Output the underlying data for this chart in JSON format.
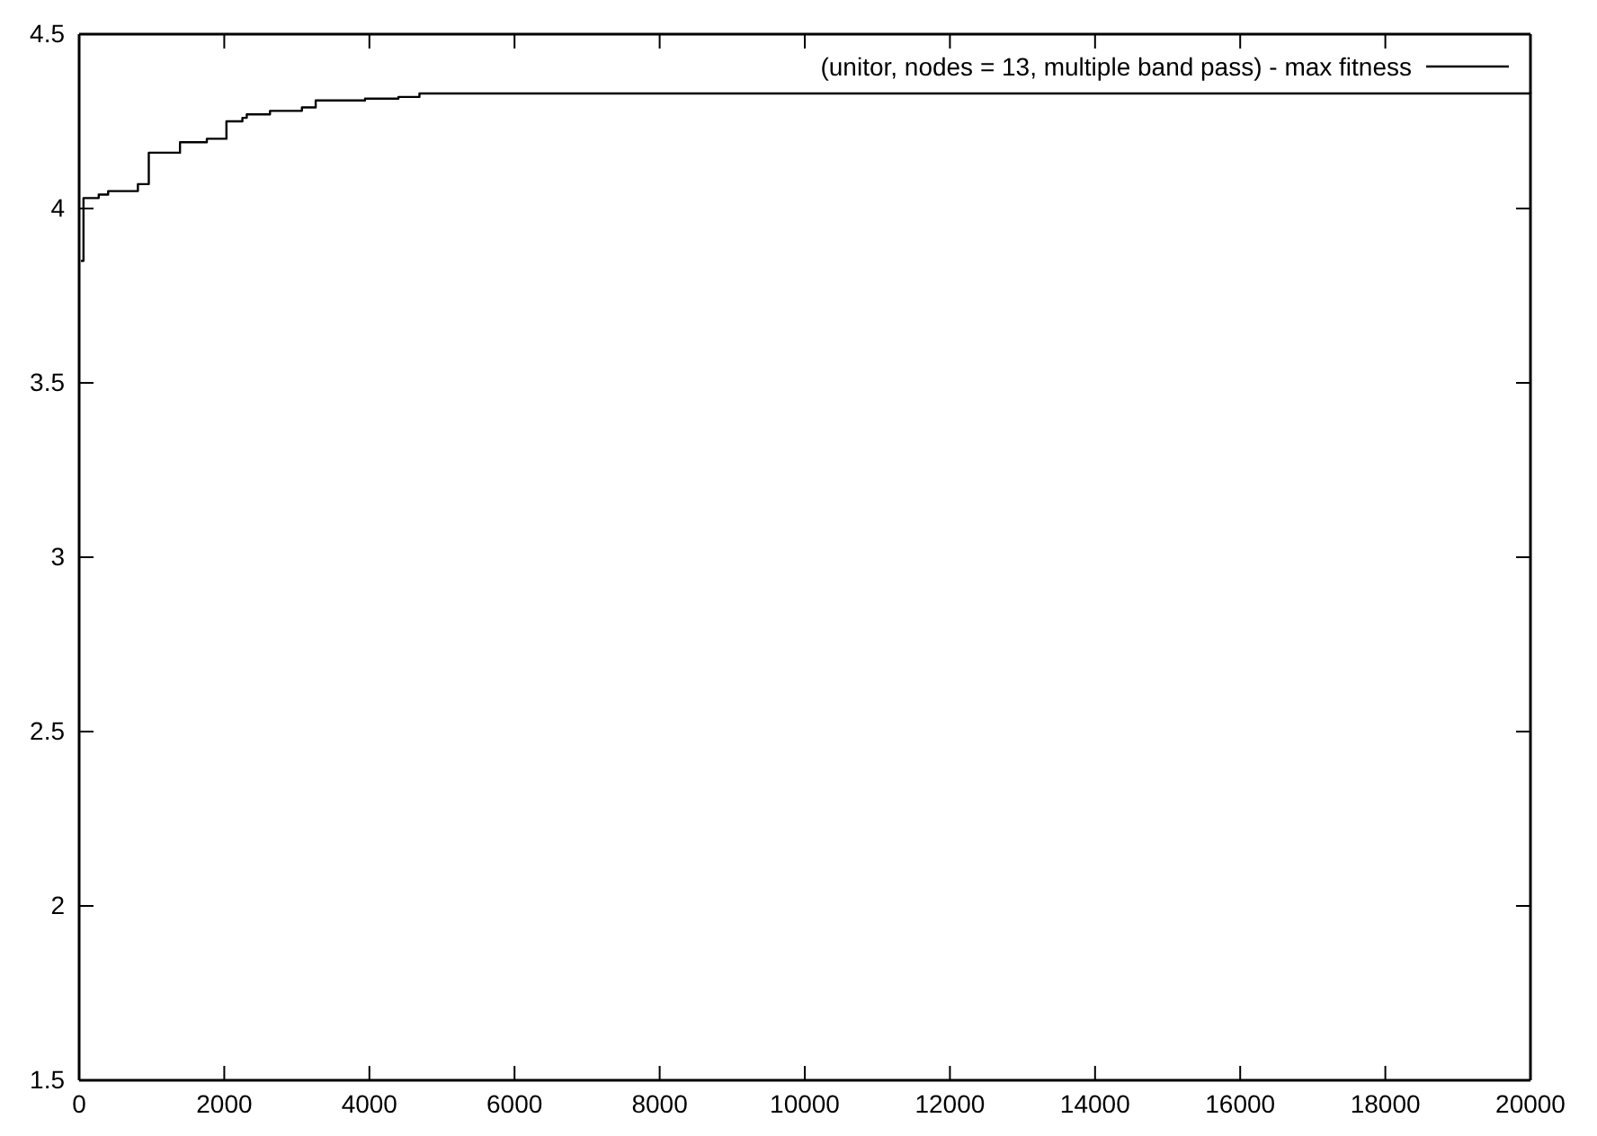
{
  "chart_data": {
    "type": "step",
    "xlim": [
      0,
      20000
    ],
    "ylim": [
      1.5,
      4.5
    ],
    "xticks": [
      0,
      2000,
      4000,
      6000,
      8000,
      10000,
      12000,
      14000,
      16000,
      18000,
      20000
    ],
    "yticks": [
      1.5,
      2,
      2.5,
      3,
      3.5,
      4,
      4.5
    ],
    "grid": false,
    "legend": "top right",
    "series": [
      {
        "name": "(unitor, nodes = 13, multiple band pass) - max fitness",
        "color": "#000000",
        "x": [
          25,
          60,
          270,
          400,
          810,
          960,
          1390,
          1760,
          2030,
          2250,
          2310,
          2630,
          3070,
          3260,
          3940,
          4400,
          4690,
          20000
        ],
        "values": [
          3.85,
          4.03,
          4.04,
          4.05,
          4.07,
          4.16,
          4.19,
          4.2,
          4.25,
          4.26,
          4.27,
          4.28,
          4.29,
          4.31,
          4.315,
          4.32,
          4.33,
          4.335
        ]
      }
    ]
  }
}
